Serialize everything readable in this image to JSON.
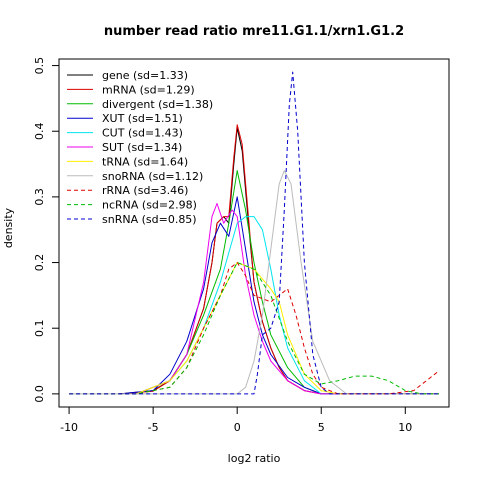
{
  "chart_data": {
    "type": "line",
    "title": "number read ratio mre11.G1.1/xrn1.G1.2",
    "xlabel": "log2 ratio",
    "ylabel": "density",
    "xlim": [
      -10.6,
      12.6
    ],
    "ylim": [
      -0.02,
      0.51
    ],
    "x_ticks": [
      -10,
      -5,
      0,
      5,
      10
    ],
    "x_tick_labels": [
      "-10",
      "-5",
      "0",
      "5",
      "10"
    ],
    "y_ticks": [
      0.0,
      0.1,
      0.2,
      0.3,
      0.4,
      0.5
    ],
    "y_tick_labels": [
      "0.0",
      "0.1",
      "0.2",
      "0.3",
      "0.4",
      "0.5"
    ],
    "legend_position": "top-left",
    "grid": false,
    "series": [
      {
        "name": "gene (sd=1.33)",
        "color": "#000000",
        "dash": "solid",
        "points": [
          [
            -7,
            0.0
          ],
          [
            -5,
            0.005
          ],
          [
            -4,
            0.02
          ],
          [
            -3,
            0.06
          ],
          [
            -2,
            0.13
          ],
          [
            -1.5,
            0.2
          ],
          [
            -1.2,
            0.26
          ],
          [
            -0.8,
            0.27
          ],
          [
            -0.5,
            0.26
          ],
          [
            -0.2,
            0.35
          ],
          [
            0,
            0.405
          ],
          [
            0.3,
            0.37
          ],
          [
            0.7,
            0.25
          ],
          [
            1,
            0.17
          ],
          [
            1.5,
            0.11
          ],
          [
            2,
            0.07
          ],
          [
            2.5,
            0.04
          ],
          [
            3,
            0.02
          ],
          [
            4,
            0.005
          ],
          [
            5,
            0.0
          ],
          [
            12,
            0.0
          ]
        ]
      },
      {
        "name": "mRNA (sd=1.29)",
        "color": "#dd0000",
        "dash": "solid",
        "points": [
          [
            -7,
            0.0
          ],
          [
            -5,
            0.004
          ],
          [
            -4,
            0.02
          ],
          [
            -3,
            0.06
          ],
          [
            -2,
            0.13
          ],
          [
            -1.5,
            0.2
          ],
          [
            -1.2,
            0.26
          ],
          [
            -0.8,
            0.27
          ],
          [
            -0.5,
            0.27
          ],
          [
            -0.2,
            0.36
          ],
          [
            0,
            0.41
          ],
          [
            0.3,
            0.38
          ],
          [
            0.7,
            0.26
          ],
          [
            1,
            0.17
          ],
          [
            1.5,
            0.11
          ],
          [
            2,
            0.07
          ],
          [
            2.5,
            0.04
          ],
          [
            3,
            0.02
          ],
          [
            4,
            0.005
          ],
          [
            5,
            0.0
          ],
          [
            12,
            0.0
          ]
        ]
      },
      {
        "name": "divergent (sd=1.38)",
        "color": "#00bb00",
        "dash": "solid",
        "points": [
          [
            -6,
            0.0
          ],
          [
            -4,
            0.02
          ],
          [
            -3,
            0.06
          ],
          [
            -2,
            0.12
          ],
          [
            -1,
            0.19
          ],
          [
            -0.5,
            0.26
          ],
          [
            0,
            0.34
          ],
          [
            0.5,
            0.28
          ],
          [
            1,
            0.2
          ],
          [
            1.5,
            0.14
          ],
          [
            2,
            0.09
          ],
          [
            3,
            0.04
          ],
          [
            4,
            0.01
          ],
          [
            5,
            0.0
          ],
          [
            12,
            0.0
          ]
        ]
      },
      {
        "name": "XUT (sd=1.51)",
        "color": "#0000cc",
        "dash": "solid",
        "points": [
          [
            -7,
            0.0
          ],
          [
            -5,
            0.005
          ],
          [
            -4,
            0.03
          ],
          [
            -3,
            0.08
          ],
          [
            -2,
            0.16
          ],
          [
            -1.5,
            0.23
          ],
          [
            -1,
            0.26
          ],
          [
            -0.5,
            0.24
          ],
          [
            0,
            0.3
          ],
          [
            0.5,
            0.22
          ],
          [
            1,
            0.14
          ],
          [
            1.5,
            0.09
          ],
          [
            2,
            0.06
          ],
          [
            3,
            0.025
          ],
          [
            4,
            0.01
          ],
          [
            5,
            0.0
          ],
          [
            12,
            0.0
          ]
        ]
      },
      {
        "name": "CUT (sd=1.43)",
        "color": "#00e5ee",
        "dash": "solid",
        "points": [
          [
            -6,
            0.0
          ],
          [
            -4,
            0.02
          ],
          [
            -3,
            0.05
          ],
          [
            -2,
            0.1
          ],
          [
            -1,
            0.17
          ],
          [
            0,
            0.26
          ],
          [
            0.5,
            0.27
          ],
          [
            1,
            0.27
          ],
          [
            1.5,
            0.25
          ],
          [
            2,
            0.19
          ],
          [
            2.5,
            0.12
          ],
          [
            3,
            0.07
          ],
          [
            4,
            0.02
          ],
          [
            5,
            0.0
          ],
          [
            12,
            0.0
          ]
        ]
      },
      {
        "name": "SUT (sd=1.34)",
        "color": "#ee00ee",
        "dash": "solid",
        "points": [
          [
            -6,
            0.0
          ],
          [
            -4,
            0.02
          ],
          [
            -3,
            0.06
          ],
          [
            -2,
            0.17
          ],
          [
            -1.5,
            0.27
          ],
          [
            -1.2,
            0.29
          ],
          [
            -0.8,
            0.26
          ],
          [
            -0.3,
            0.28
          ],
          [
            0,
            0.27
          ],
          [
            0.5,
            0.18
          ],
          [
            1,
            0.12
          ],
          [
            1.5,
            0.08
          ],
          [
            2,
            0.05
          ],
          [
            3,
            0.02
          ],
          [
            4,
            0.005
          ],
          [
            5,
            0.0
          ],
          [
            12,
            0.0
          ]
        ]
      },
      {
        "name": "tRNA (sd=1.64)",
        "color": "#ffee00",
        "dash": "solid",
        "points": [
          [
            -6,
            0.0
          ],
          [
            -4,
            0.02
          ],
          [
            -3,
            0.05
          ],
          [
            -2,
            0.1
          ],
          [
            -1,
            0.15
          ],
          [
            0,
            0.2
          ],
          [
            1,
            0.19
          ],
          [
            2,
            0.16
          ],
          [
            2.5,
            0.14
          ],
          [
            3,
            0.09
          ],
          [
            4,
            0.03
          ],
          [
            5,
            0.005
          ],
          [
            6,
            0.0
          ],
          [
            12,
            0.0
          ]
        ]
      },
      {
        "name": "snoRNA (sd=1.12)",
        "color": "#bbbbbb",
        "dash": "solid",
        "points": [
          [
            -10,
            0.0
          ],
          [
            0,
            0.0
          ],
          [
            0.5,
            0.01
          ],
          [
            1,
            0.05
          ],
          [
            1.5,
            0.12
          ],
          [
            2,
            0.22
          ],
          [
            2.5,
            0.32
          ],
          [
            2.8,
            0.34
          ],
          [
            3.2,
            0.32
          ],
          [
            3.8,
            0.2
          ],
          [
            4.5,
            0.08
          ],
          [
            5.5,
            0.02
          ],
          [
            6.5,
            0.0
          ],
          [
            12,
            0.0
          ]
        ]
      },
      {
        "name": "rRNA (sd=3.46)",
        "color": "#dd0000",
        "dash": "dashed",
        "points": [
          [
            -10,
            0.0
          ],
          [
            -6,
            0.0
          ],
          [
            -4,
            0.01
          ],
          [
            -3,
            0.04
          ],
          [
            -2,
            0.1
          ],
          [
            -1,
            0.15
          ],
          [
            -0.5,
            0.19
          ],
          [
            0,
            0.2
          ],
          [
            0.5,
            0.18
          ],
          [
            1,
            0.15
          ],
          [
            2,
            0.14
          ],
          [
            3,
            0.16
          ],
          [
            3.5,
            0.12
          ],
          [
            4,
            0.07
          ],
          [
            4.5,
            0.03
          ],
          [
            5,
            0.01
          ],
          [
            6,
            0.0
          ],
          [
            9,
            0.0
          ],
          [
            10.5,
            0.005
          ],
          [
            11.5,
            0.025
          ],
          [
            12,
            0.035
          ]
        ]
      },
      {
        "name": "ncRNA (sd=2.98)",
        "color": "#00bb00",
        "dash": "dashed",
        "points": [
          [
            -10,
            0.0
          ],
          [
            -6,
            0.0
          ],
          [
            -4,
            0.01
          ],
          [
            -3,
            0.04
          ],
          [
            -2,
            0.09
          ],
          [
            -1,
            0.15
          ],
          [
            0,
            0.2
          ],
          [
            1,
            0.19
          ],
          [
            1.5,
            0.17
          ],
          [
            2,
            0.15
          ],
          [
            3,
            0.08
          ],
          [
            4,
            0.03
          ],
          [
            5,
            0.015
          ],
          [
            6,
            0.02
          ],
          [
            7,
            0.027
          ],
          [
            8,
            0.027
          ],
          [
            9,
            0.02
          ],
          [
            10,
            0.005
          ],
          [
            11,
            0.0
          ],
          [
            12,
            0.0
          ]
        ]
      },
      {
        "name": "snRNA (sd=0.85)",
        "color": "#0000cc",
        "dash": "dashed",
        "points": [
          [
            -10,
            0.0
          ],
          [
            1,
            0.0
          ],
          [
            1.2,
            0.03
          ],
          [
            1.5,
            0.09
          ],
          [
            2,
            0.1
          ],
          [
            2.5,
            0.14
          ],
          [
            2.8,
            0.28
          ],
          [
            3.1,
            0.44
          ],
          [
            3.3,
            0.49
          ],
          [
            3.6,
            0.4
          ],
          [
            4,
            0.2
          ],
          [
            4.5,
            0.06
          ],
          [
            5,
            0.01
          ],
          [
            5.5,
            0.0
          ],
          [
            12,
            0.0
          ]
        ]
      }
    ]
  }
}
